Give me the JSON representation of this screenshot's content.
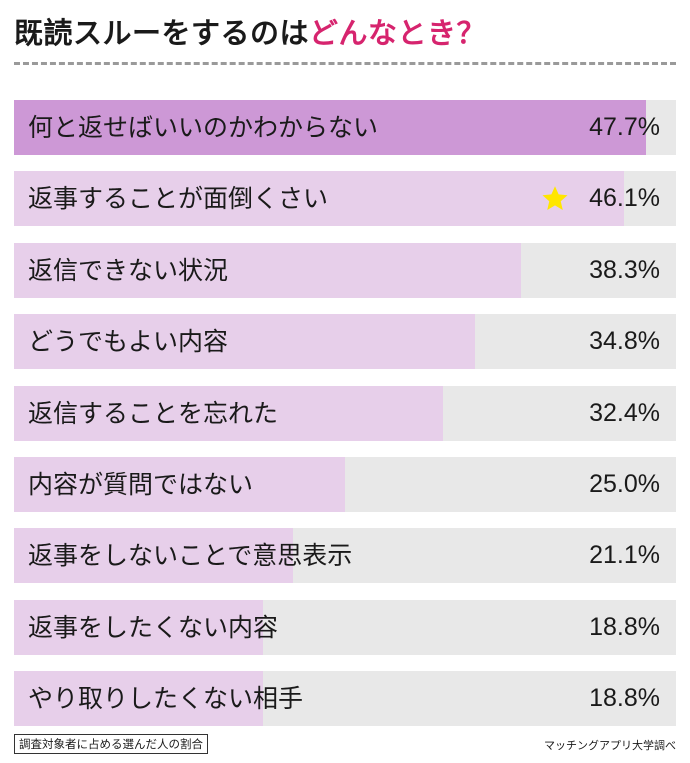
{
  "title": {
    "main": "既読スルーをするのは",
    "accent": "どんなとき？"
  },
  "colors": {
    "top_bar": "#cd98d6",
    "bar": "#e7cfea",
    "track": "#e8e8e8",
    "accent": "#d6246e",
    "star": "#ffe600"
  },
  "chart_data": {
    "type": "bar",
    "orientation": "horizontal",
    "xlim": [
      0,
      50
    ],
    "highlight": "返事することが面倒くさい",
    "categories": [
      "何と返せばいいのかわからない",
      "返事することが面倒くさい",
      "返信できない状況",
      "どうでもよい内容",
      "返信することを忘れた",
      "内容が質問ではない",
      "返事をしないことで意思表示",
      "返事をしたくない内容",
      "やり取りしたくない相手"
    ],
    "values": [
      47.7,
      46.1,
      38.3,
      34.8,
      32.4,
      25.0,
      21.1,
      18.8,
      18.8
    ],
    "value_labels": [
      "47.7%",
      "46.1%",
      "38.3%",
      "34.8%",
      "32.4%",
      "25.0%",
      "21.1%",
      "18.8%",
      "18.8%"
    ]
  },
  "footnote": "調査対象者に占める選んだ人の割合",
  "source": "マッチングアプリ大学調べ"
}
